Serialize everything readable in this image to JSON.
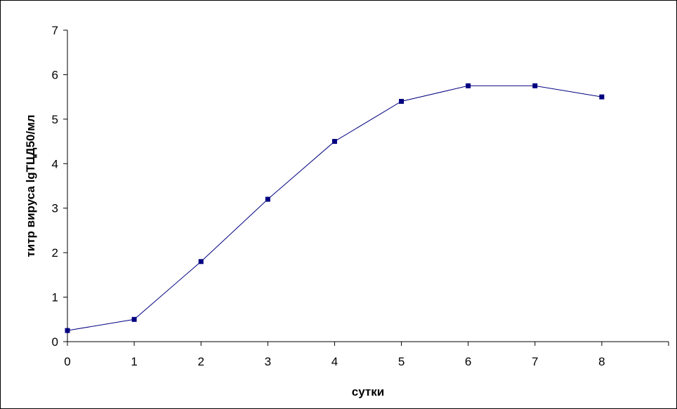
{
  "chart_data": {
    "type": "line",
    "title": "",
    "xlabel": "сутки",
    "ylabel": "титр вируса lgТЦД50/мл",
    "xlim": [
      0,
      9
    ],
    "ylim": [
      0,
      7
    ],
    "x_ticks": [
      0,
      1,
      2,
      3,
      4,
      5,
      6,
      7,
      8
    ],
    "y_ticks": [
      0,
      1,
      2,
      3,
      4,
      5,
      6,
      7
    ],
    "grid": false,
    "legend": "none",
    "series": [
      {
        "color": "#000080",
        "marker": "square",
        "x": [
          0,
          1,
          2,
          3,
          4,
          5,
          6,
          7,
          8
        ],
        "y": [
          0.25,
          0.5,
          1.8,
          3.2,
          4.5,
          5.4,
          5.75,
          5.75,
          5.5
        ]
      }
    ]
  }
}
